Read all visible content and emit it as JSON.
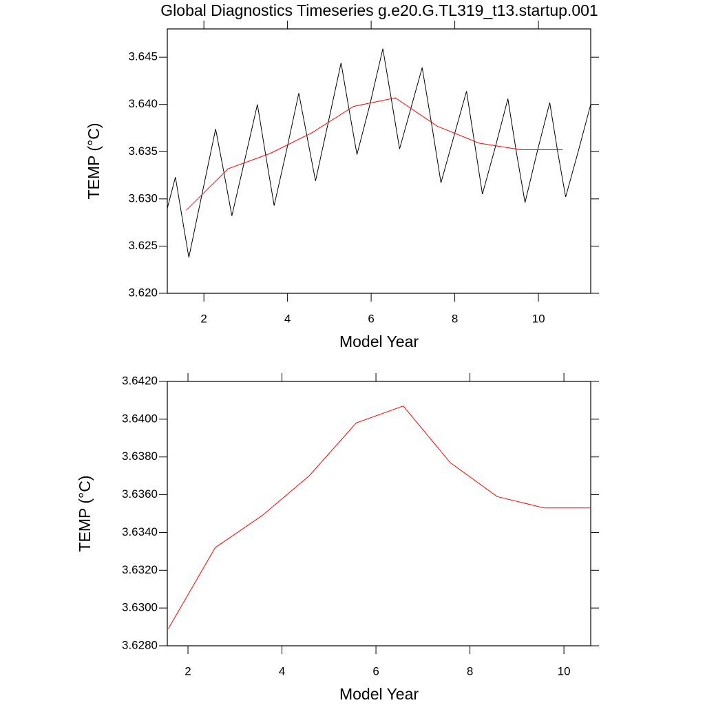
{
  "chart_data": [
    {
      "type": "line",
      "title": "Global Diagnostics Timeseries g.e20.G.TL319_t13.startup.001",
      "x_label": "Model Year",
      "y_label": "TEMP (°C)",
      "xlim": [
        1.125,
        11.25
      ],
      "ylim": [
        3.62,
        3.648
      ],
      "xticks": [
        2,
        4,
        6,
        8,
        10
      ],
      "yticks": [
        {
          "value": 3.62,
          "label": "3.620"
        },
        3.625,
        {
          "value": 3.63,
          "label": "3.630"
        },
        3.635,
        {
          "value": 3.64,
          "label": "3.640"
        },
        3.645
      ],
      "series": [
        {
          "color": "#000000",
          "x": [
            1.125,
            1.32,
            1.48,
            1.64,
            1.96,
            2.28,
            2.47,
            2.67,
            2.97,
            3.28,
            3.48,
            3.68,
            3.97,
            4.27,
            4.47,
            4.67,
            4.97,
            5.28,
            5.47,
            5.66,
            5.97,
            6.28,
            6.48,
            6.68,
            6.95,
            7.22,
            7.45,
            7.67,
            7.97,
            8.28,
            8.47,
            8.66,
            8.97,
            9.27,
            9.47,
            9.68,
            9.97,
            10.27,
            10.46,
            10.65,
            10.95,
            11.25
          ],
          "values": [
            3.629,
            3.6323,
            3.628,
            3.6238,
            3.6306,
            3.6374,
            3.633,
            3.6282,
            3.634,
            3.64,
            3.6346,
            3.6293,
            3.635,
            3.6412,
            3.6365,
            3.6319,
            3.638,
            3.6444,
            3.6395,
            3.6347,
            3.64,
            3.6459,
            3.6406,
            3.6353,
            3.6396,
            3.6439,
            3.6378,
            3.6317,
            3.6365,
            3.6414,
            3.636,
            3.6305,
            3.6355,
            3.6406,
            3.635,
            3.6296,
            3.635,
            3.6402,
            3.635,
            3.6302,
            3.635,
            3.64
          ]
        },
        {
          "color": "#ff0000",
          "x": [
            1.58,
            2.58,
            3.58,
            4.58,
            5.58,
            6.58,
            7.58,
            8.58,
            9.58,
            10.58
          ],
          "values": [
            3.6288,
            3.6332,
            3.6348,
            3.637,
            3.6398,
            3.6407,
            3.6377,
            3.6359,
            3.6352,
            3.6352
          ]
        }
      ]
    },
    {
      "type": "line",
      "x_label": "Model Year",
      "y_label": "TEMP (°C)",
      "xlim": [
        1.56,
        10.57
      ],
      "ylim": [
        3.628,
        3.642
      ],
      "xticks": [
        2,
        4,
        6,
        8,
        10
      ],
      "yticks": [
        {
          "value": 3.628,
          "label": "3.6280"
        },
        {
          "value": 3.63,
          "label": "3.6300"
        },
        {
          "value": 3.632,
          "label": "3.6320"
        },
        {
          "value": 3.634,
          "label": "3.6340"
        },
        {
          "value": 3.636,
          "label": "3.6360"
        },
        {
          "value": 3.638,
          "label": "3.6380"
        },
        {
          "value": 3.64,
          "label": "3.6400"
        },
        {
          "value": 3.642,
          "label": "3.6420"
        }
      ],
      "series": [
        {
          "color": "#ff0000",
          "x": [
            1.58,
            2.58,
            3.58,
            4.58,
            5.58,
            6.58,
            7.58,
            8.58,
            9.58,
            10.58
          ],
          "values": [
            3.6289,
            3.6332,
            3.6349,
            3.637,
            3.6398,
            3.6407,
            3.6377,
            3.6359,
            3.6353,
            3.6353
          ]
        }
      ]
    }
  ]
}
